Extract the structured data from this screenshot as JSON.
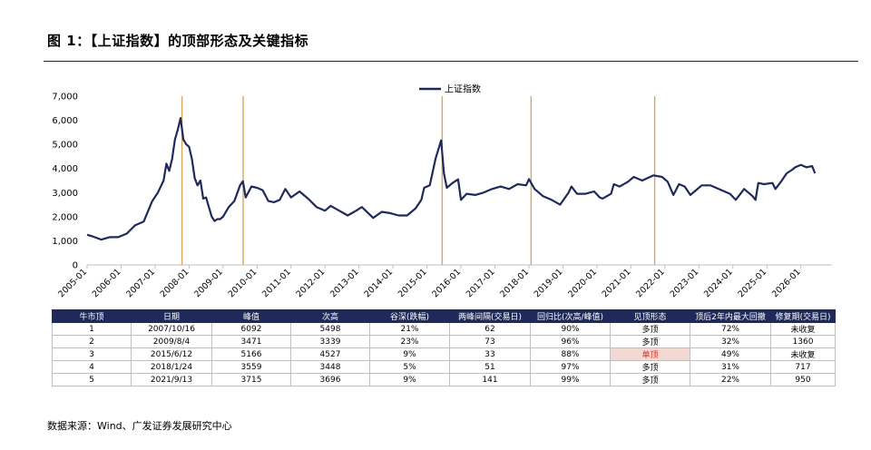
{
  "title": "图 1：【上证指数】的顶部形态及关键指标",
  "source": "数据来源：Wind、广发证券发展研究中心",
  "colors": {
    "line": "#1f2a5a",
    "vline": "#d9a662",
    "header": "#1f2a5a",
    "highlight_text": "#d62e1f",
    "highlight_bg": "#f3d9d4"
  },
  "chart_data": {
    "type": "line",
    "legend": "上证指数",
    "legend_position": "top-center",
    "ylim": [
      0,
      7000
    ],
    "yticks": [
      0,
      1000,
      2000,
      3000,
      4000,
      5000,
      6000,
      7000
    ],
    "ytick_labels": [
      "0",
      "1,000",
      "2,000",
      "3,000",
      "4,000",
      "5,000",
      "6,000",
      "7,000"
    ],
    "xlim": [
      "2005-01",
      "2026-12"
    ],
    "xtick_labels": [
      "2005-01",
      "2006-01",
      "2007-01",
      "2008-01",
      "2009-01",
      "2010-01",
      "2011-01",
      "2012-01",
      "2013-01",
      "2014-01",
      "2015-01",
      "2016-01",
      "2017-01",
      "2018-01",
      "2019-01",
      "2020-01",
      "2021-01",
      "2022-01",
      "2023-01",
      "2024-01",
      "2025-01",
      "2026-01"
    ],
    "vertical_markers": [
      "2007-10-16",
      "2009-08-04",
      "2015-06-12",
      "2018-01-24",
      "2021-09-13"
    ],
    "series": [
      {
        "name": "上证指数",
        "points": [
          [
            "2005-01",
            1250
          ],
          [
            "2005-03",
            1180
          ],
          [
            "2005-06",
            1050
          ],
          [
            "2005-09",
            1150
          ],
          [
            "2005-12",
            1150
          ],
          [
            "2006-03",
            1300
          ],
          [
            "2006-06",
            1650
          ],
          [
            "2006-09",
            1800
          ],
          [
            "2006-12",
            2650
          ],
          [
            "2007-02",
            3000
          ],
          [
            "2007-04",
            3500
          ],
          [
            "2007-05",
            4200
          ],
          [
            "2007-06",
            3900
          ],
          [
            "2007-07",
            4400
          ],
          [
            "2007-08",
            5200
          ],
          [
            "2007-09",
            5600
          ],
          [
            "2007-10",
            6092
          ],
          [
            "2007-11",
            5200
          ],
          [
            "2007-12",
            5000
          ],
          [
            "2008-01",
            4900
          ],
          [
            "2008-02",
            4400
          ],
          [
            "2008-03",
            3600
          ],
          [
            "2008-04",
            3300
          ],
          [
            "2008-05",
            3500
          ],
          [
            "2008-06",
            2750
          ],
          [
            "2008-07",
            2800
          ],
          [
            "2008-08",
            2400
          ],
          [
            "2008-09",
            2000
          ],
          [
            "2008-10",
            1820
          ],
          [
            "2008-11",
            1900
          ],
          [
            "2008-12",
            1900
          ],
          [
            "2009-01",
            2000
          ],
          [
            "2009-03",
            2400
          ],
          [
            "2009-05",
            2650
          ],
          [
            "2009-07",
            3300
          ],
          [
            "2009-08",
            3471
          ],
          [
            "2009-09",
            2800
          ],
          [
            "2009-11",
            3250
          ],
          [
            "2010-01",
            3200
          ],
          [
            "2010-03",
            3100
          ],
          [
            "2010-05",
            2650
          ],
          [
            "2010-07",
            2600
          ],
          [
            "2010-09",
            2700
          ],
          [
            "2010-11",
            3150
          ],
          [
            "2011-01",
            2800
          ],
          [
            "2011-04",
            3050
          ],
          [
            "2011-07",
            2750
          ],
          [
            "2011-10",
            2400
          ],
          [
            "2012-01",
            2250
          ],
          [
            "2012-03",
            2450
          ],
          [
            "2012-06",
            2250
          ],
          [
            "2012-09",
            2050
          ],
          [
            "2012-12",
            2250
          ],
          [
            "2013-02",
            2400
          ],
          [
            "2013-06",
            1950
          ],
          [
            "2013-09",
            2200
          ],
          [
            "2013-12",
            2150
          ],
          [
            "2014-03",
            2050
          ],
          [
            "2014-06",
            2050
          ],
          [
            "2014-09",
            2350
          ],
          [
            "2014-11",
            2700
          ],
          [
            "2014-12",
            3200
          ],
          [
            "2015-02",
            3300
          ],
          [
            "2015-04",
            4400
          ],
          [
            "2015-06",
            5166
          ],
          [
            "2015-07",
            3800
          ],
          [
            "2015-08",
            3200
          ],
          [
            "2015-10",
            3400
          ],
          [
            "2015-12",
            3550
          ],
          [
            "2016-01",
            2700
          ],
          [
            "2016-03",
            2950
          ],
          [
            "2016-06",
            2900
          ],
          [
            "2016-09",
            3000
          ],
          [
            "2016-12",
            3150
          ],
          [
            "2017-03",
            3250
          ],
          [
            "2017-06",
            3150
          ],
          [
            "2017-09",
            3350
          ],
          [
            "2017-12",
            3300
          ],
          [
            "2018-01",
            3559
          ],
          [
            "2018-03",
            3150
          ],
          [
            "2018-06",
            2850
          ],
          [
            "2018-09",
            2700
          ],
          [
            "2018-12",
            2500
          ],
          [
            "2019-03",
            3000
          ],
          [
            "2019-04",
            3250
          ],
          [
            "2019-06",
            2950
          ],
          [
            "2019-09",
            2950
          ],
          [
            "2019-12",
            3050
          ],
          [
            "2020-02",
            2800
          ],
          [
            "2020-03",
            2750
          ],
          [
            "2020-06",
            2950
          ],
          [
            "2020-07",
            3350
          ],
          [
            "2020-09",
            3250
          ],
          [
            "2020-12",
            3450
          ],
          [
            "2021-02",
            3650
          ],
          [
            "2021-05",
            3500
          ],
          [
            "2021-09",
            3715
          ],
          [
            "2021-12",
            3650
          ],
          [
            "2022-02",
            3450
          ],
          [
            "2022-04",
            2900
          ],
          [
            "2022-06",
            3350
          ],
          [
            "2022-08",
            3250
          ],
          [
            "2022-10",
            2900
          ],
          [
            "2022-12",
            3100
          ],
          [
            "2023-02",
            3300
          ],
          [
            "2023-05",
            3300
          ],
          [
            "2023-08",
            3150
          ],
          [
            "2023-10",
            3050
          ],
          [
            "2023-12",
            2950
          ],
          [
            "2024-02",
            2700
          ],
          [
            "2024-05",
            3150
          ],
          [
            "2024-08",
            2850
          ],
          [
            "2024-09",
            2700
          ],
          [
            "2024-10",
            3400
          ],
          [
            "2024-12",
            3350
          ],
          [
            "2025-03",
            3400
          ],
          [
            "2025-04",
            3150
          ],
          [
            "2025-06",
            3450
          ],
          [
            "2025-08",
            3800
          ],
          [
            "2025-10",
            3950
          ],
          [
            "2025-11",
            4050
          ],
          [
            "2026-01",
            4150
          ],
          [
            "2026-03",
            4050
          ],
          [
            "2026-05",
            4100
          ],
          [
            "2026-06",
            3800
          ]
        ]
      }
    ]
  },
  "table": {
    "headers": [
      "牛市顶",
      "日期",
      "峰值",
      "次高",
      "谷深(跌幅)",
      "两峰间隔(交易日)",
      "回归比(次高/峰值)",
      "见顶形态",
      "顶后2年内最大回撤",
      "修复期(交易日)"
    ],
    "rows": [
      [
        "1",
        "2007/10/16",
        "6092",
        "5498",
        "21%",
        "62",
        "90%",
        "多顶",
        "72%",
        "未收复"
      ],
      [
        "2",
        "2009/8/4",
        "3471",
        "3339",
        "23%",
        "73",
        "96%",
        "多顶",
        "32%",
        "1360"
      ],
      [
        "3",
        "2015/6/12",
        "5166",
        "4527",
        "9%",
        "33",
        "88%",
        "单顶",
        "49%",
        "未收复"
      ],
      [
        "4",
        "2018/1/24",
        "3559",
        "3448",
        "5%",
        "51",
        "97%",
        "多顶",
        "31%",
        "717"
      ],
      [
        "5",
        "2021/9/13",
        "3715",
        "3696",
        "9%",
        "141",
        "99%",
        "多顶",
        "22%",
        "950"
      ]
    ]
  }
}
